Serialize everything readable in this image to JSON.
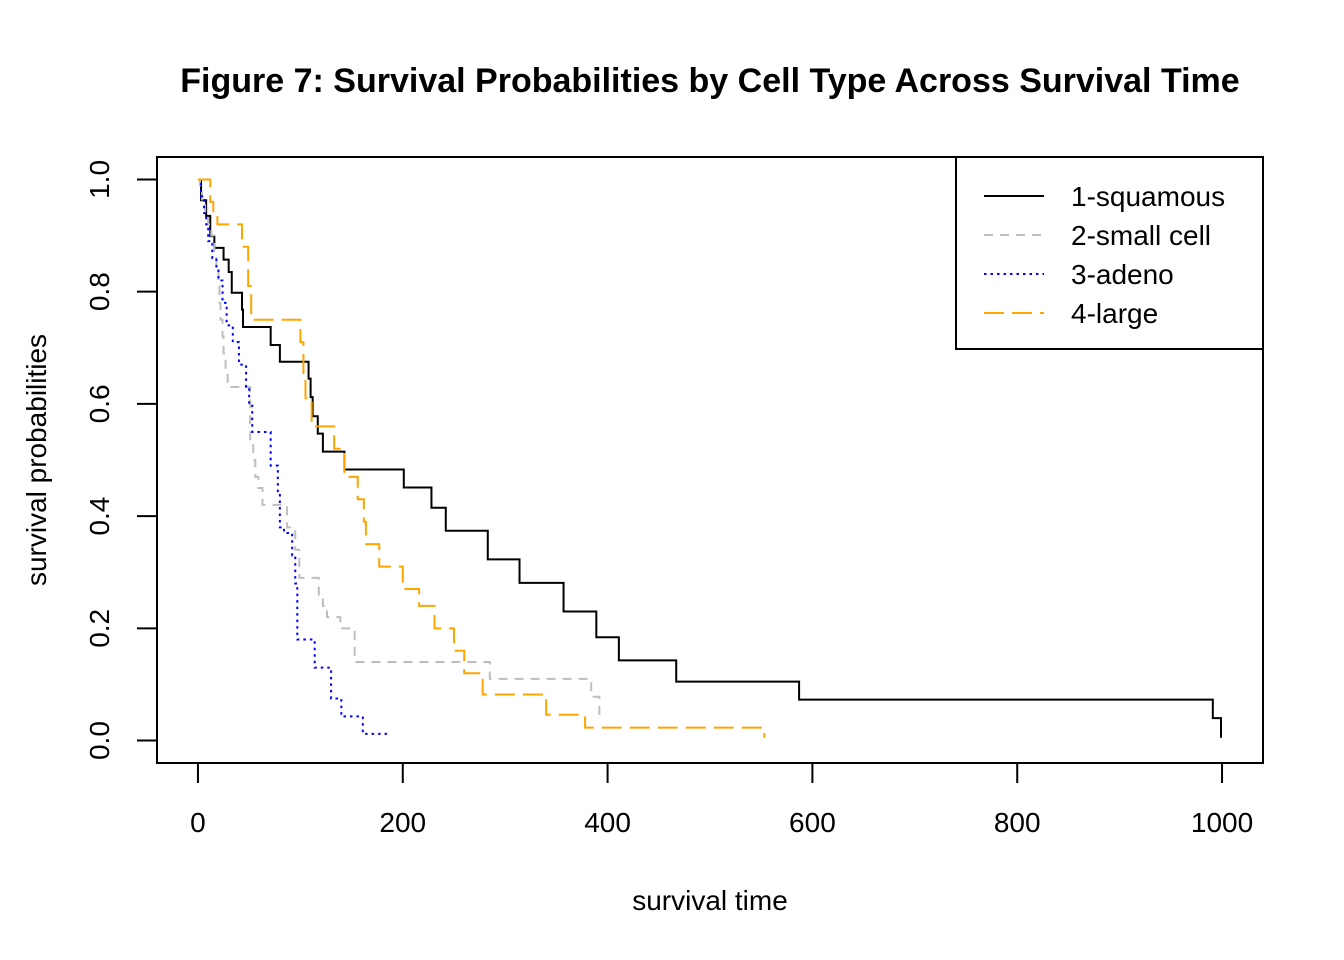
{
  "chart_data": {
    "type": "line",
    "step": true,
    "title": "Figure 7: Survival Probabilities by Cell Type Across Survival Time",
    "xlabel": "survival time",
    "ylabel": "survival probabilities",
    "xlim": [
      -40,
      1040
    ],
    "ylim": [
      -0.04,
      1.04
    ],
    "xticks": [
      0,
      200,
      400,
      600,
      800,
      1000
    ],
    "xtick_labels": [
      "0",
      "200",
      "400",
      "600",
      "800",
      "1000"
    ],
    "yticks": [
      0.0,
      0.2,
      0.4,
      0.6,
      0.8,
      1.0
    ],
    "ytick_labels": [
      "0.0",
      "0.2",
      "0.4",
      "0.6",
      "0.8",
      "1.0"
    ],
    "grid": false,
    "legend_position": "top-right",
    "series": [
      {
        "name": "1-squamous",
        "color": "#000000",
        "dash": "solid",
        "x": [
          0,
          3,
          8,
          12,
          16,
          18,
          25,
          30,
          33,
          43,
          44,
          71,
          80,
          108,
          110,
          112,
          117,
          122,
          129,
          143,
          201,
          228,
          242,
          283,
          314,
          357,
          389,
          411,
          467,
          587,
          991,
          999
        ],
        "y": [
          1.0,
          0.963,
          0.935,
          0.899,
          0.878,
          0.878,
          0.857,
          0.835,
          0.798,
          0.768,
          0.737,
          0.705,
          0.675,
          0.645,
          0.612,
          0.578,
          0.547,
          0.515,
          0.515,
          0.483,
          0.451,
          0.415,
          0.374,
          0.323,
          0.281,
          0.23,
          0.184,
          0.143,
          0.105,
          0.073,
          0.04,
          0.005
        ]
      },
      {
        "name": "2-small cell",
        "color": "#bebebe",
        "dash": "dashed",
        "x": [
          0,
          2,
          4,
          7,
          10,
          13,
          16,
          18,
          20,
          21,
          22,
          24,
          25,
          27,
          29,
          30,
          51,
          54,
          56,
          59,
          63,
          87,
          95,
          99,
          118,
          122,
          126,
          139,
          153,
          285,
          384,
          392
        ],
        "y": [
          1.0,
          0.98,
          0.96,
          0.94,
          0.92,
          0.9,
          0.87,
          0.84,
          0.81,
          0.78,
          0.75,
          0.72,
          0.69,
          0.66,
          0.63,
          0.63,
          0.53,
          0.5,
          0.47,
          0.45,
          0.42,
          0.38,
          0.34,
          0.29,
          0.26,
          0.24,
          0.22,
          0.2,
          0.14,
          0.11,
          0.078,
          0.04
        ]
      },
      {
        "name": "3-adeno",
        "color": "#0000ff",
        "dash": "dotted",
        "x": [
          0,
          3,
          6,
          8,
          10,
          14,
          18,
          20,
          24,
          28,
          34,
          40,
          47,
          50,
          53,
          55,
          71,
          78,
          80,
          84,
          92,
          95,
          97,
          114,
          118,
          130,
          135,
          140,
          161,
          186
        ],
        "y": [
          1.0,
          0.97,
          0.94,
          0.92,
          0.89,
          0.86,
          0.84,
          0.82,
          0.78,
          0.74,
          0.71,
          0.67,
          0.63,
          0.6,
          0.55,
          0.55,
          0.49,
          0.44,
          0.38,
          0.37,
          0.33,
          0.28,
          0.18,
          0.13,
          0.13,
          0.075,
          0.075,
          0.043,
          0.012,
          0.012
        ]
      },
      {
        "name": "4-large",
        "color": "#ffa500",
        "dash": "longdash",
        "x": [
          0,
          12,
          15,
          19,
          43,
          49,
          52,
          100,
          103,
          105,
          111,
          117,
          133,
          143,
          156,
          162,
          164,
          177,
          200,
          216,
          231,
          250,
          260,
          278,
          340,
          378,
          553
        ],
        "y": [
          1.0,
          0.96,
          0.94,
          0.92,
          0.88,
          0.81,
          0.75,
          0.71,
          0.65,
          0.61,
          0.56,
          0.56,
          0.52,
          0.47,
          0.43,
          0.39,
          0.35,
          0.31,
          0.27,
          0.24,
          0.2,
          0.16,
          0.12,
          0.082,
          0.046,
          0.023,
          0.005
        ]
      }
    ]
  }
}
